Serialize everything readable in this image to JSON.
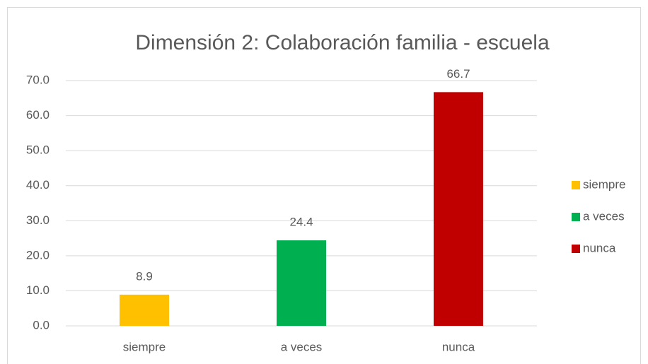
{
  "chart_data": {
    "type": "bar",
    "title": "Dimensión 2: Colaboración familia - escuela",
    "categories": [
      "siempre",
      "a veces",
      "nunca"
    ],
    "values": [
      8.9,
      24.4,
      66.7
    ],
    "colors": [
      "#ffc000",
      "#00b050",
      "#c00000"
    ],
    "ylim": [
      0,
      70
    ],
    "yticks": [
      {
        "value": 0,
        "label": "0.0"
      },
      {
        "value": 10,
        "label": "10.0"
      },
      {
        "value": 20,
        "label": "20.0"
      },
      {
        "value": 30,
        "label": "30.0"
      },
      {
        "value": 40,
        "label": "40.0"
      },
      {
        "value": 50,
        "label": "50.0"
      },
      {
        "value": 60,
        "label": "60.0"
      },
      {
        "value": 70,
        "label": "70.0"
      }
    ],
    "grid": true,
    "legend": "right"
  }
}
